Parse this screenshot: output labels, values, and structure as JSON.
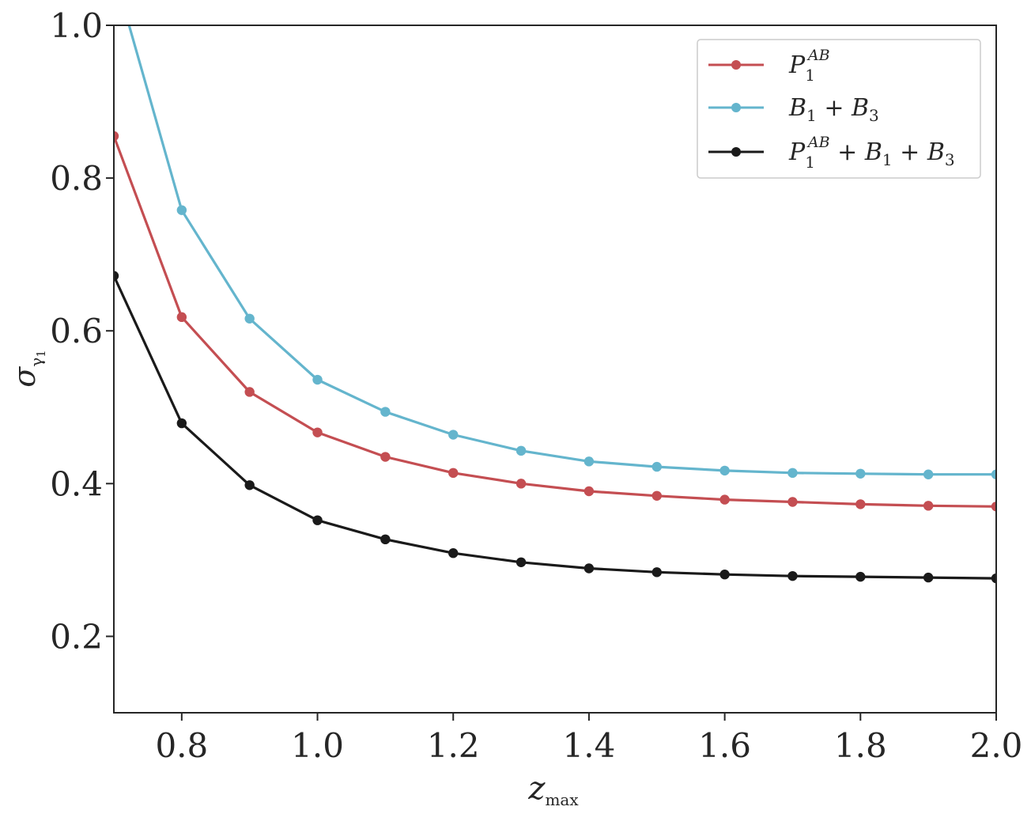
{
  "chart_data": {
    "type": "line",
    "xlabel": "z_max",
    "ylabel": "σ_γ1",
    "xlim": [
      0.7,
      2.0
    ],
    "ylim": [
      0.1,
      1.0
    ],
    "x_ticks": [
      "0.8",
      "1.0",
      "1.2",
      "1.4",
      "1.6",
      "1.8",
      "2.0"
    ],
    "y_ticks": [
      "0.2",
      "0.4",
      "0.6",
      "0.8",
      "1.0"
    ],
    "grid": false,
    "legend_position": "top-right",
    "x": [
      0.7,
      0.8,
      0.9,
      1.0,
      1.1,
      1.2,
      1.3,
      1.4,
      1.5,
      1.6,
      1.7,
      1.8,
      1.9,
      2.0
    ],
    "series": [
      {
        "name": "P_1^AB",
        "color": "#c44e52",
        "values": [
          0.855,
          0.618,
          0.52,
          0.467,
          0.435,
          0.414,
          0.4,
          0.39,
          0.384,
          0.379,
          0.376,
          0.373,
          0.371,
          0.37
        ]
      },
      {
        "name": "B_1 + B_3",
        "color": "#64b5cd",
        "values": [
          1.07,
          0.758,
          0.616,
          0.536,
          0.494,
          0.464,
          0.443,
          0.429,
          0.422,
          0.417,
          0.414,
          0.413,
          0.412,
          0.412
        ]
      },
      {
        "name": "P_1^AB + B_1 + B_3",
        "color": "#1a1a1a",
        "values": [
          0.672,
          0.479,
          0.398,
          0.352,
          0.327,
          0.309,
          0.297,
          0.289,
          0.284,
          0.281,
          0.279,
          0.278,
          0.277,
          0.276
        ]
      }
    ]
  }
}
